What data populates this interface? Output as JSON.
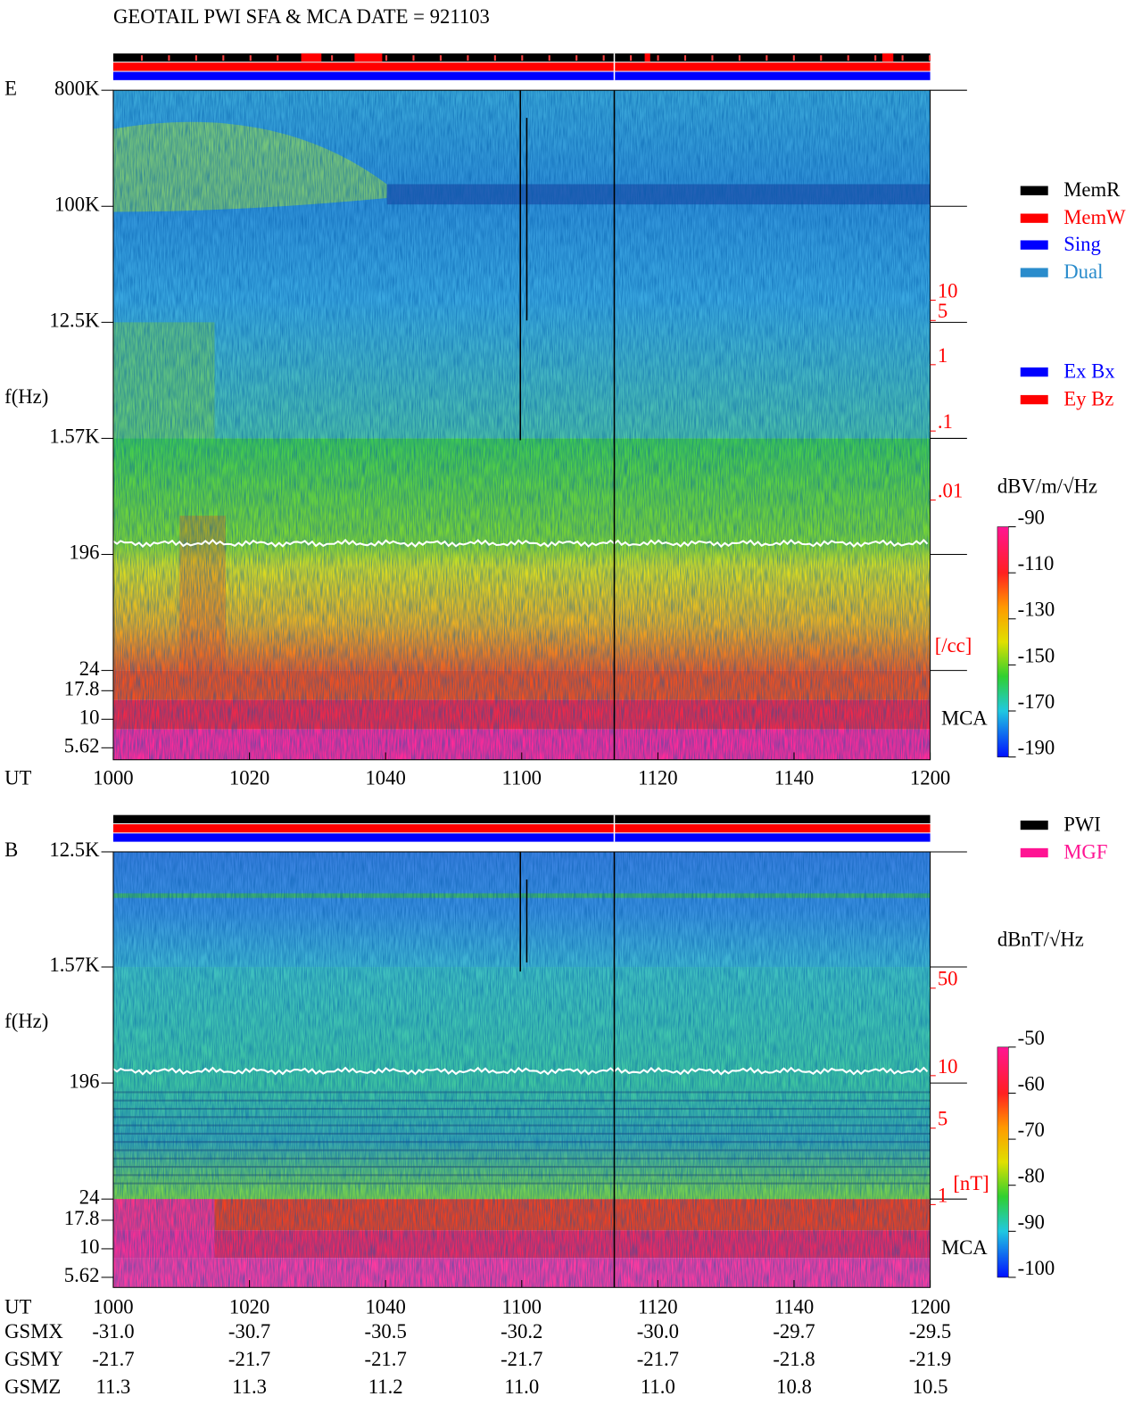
{
  "header": {
    "title": "GEOTAIL  PWI SFA & MCA   DATE = 921103"
  },
  "panels": [
    {
      "label": "E",
      "y_axis_label": "f(Hz)",
      "x_axis_label": "UT",
      "mca_label": "MCA",
      "freq_ticks": [
        "800K",
        "100K",
        "12.5K",
        "1.57K",
        "196",
        "24",
        "17.8",
        "10",
        "5.62"
      ],
      "time_ticks": [
        "1000",
        "1020",
        "1040",
        "1100",
        "1120",
        "1140",
        "1200"
      ],
      "side_scale": {
        "ticks": [
          "10",
          "5",
          "1",
          ".1",
          ".01"
        ],
        "unit": "[/cc]"
      },
      "legend": [
        {
          "name": "MemR",
          "color": "#000000"
        },
        {
          "name": "MemW",
          "color": "#ff0000"
        },
        {
          "name": "Sing",
          "color": "#0000ff"
        },
        {
          "name": "Dual",
          "color": "#2a8ccc"
        }
      ],
      "legend2": [
        {
          "name": "Ex Bx",
          "color": "#0000ff"
        },
        {
          "name": "Ey Bz",
          "color": "#ff0000"
        }
      ],
      "colorbar": {
        "unit": "dBV/m/√Hz",
        "ticks": [
          -90,
          -110,
          -130,
          -150,
          -170,
          -190
        ]
      }
    },
    {
      "label": "B",
      "y_axis_label": "f(Hz)",
      "x_axis_label": "UT",
      "mca_label": "MCA",
      "freq_ticks": [
        "12.5K",
        "1.57K",
        "196",
        "24",
        "17.8",
        "10",
        "5.62"
      ],
      "time_ticks": [
        "1000",
        "1020",
        "1040",
        "1100",
        "1120",
        "1140",
        "1200"
      ],
      "side_scale": {
        "ticks": [
          "50",
          "10",
          "5",
          "1"
        ],
        "unit": "[nT]"
      },
      "legend": [
        {
          "name": "PWI",
          "color": "#000000"
        },
        {
          "name": "MGF",
          "color": "#ff1493"
        }
      ],
      "colorbar": {
        "unit": "dBnT/√Hz",
        "ticks": [
          -50,
          -60,
          -70,
          -80,
          -90,
          -100
        ]
      }
    }
  ],
  "orbit": {
    "rows": [
      {
        "label": "GSMX",
        "values": [
          "-31.0",
          "-30.7",
          "-30.5",
          "-30.2",
          "-30.0",
          "-29.7",
          "-29.5"
        ]
      },
      {
        "label": "GSMY",
        "values": [
          "-21.7",
          "-21.7",
          "-21.7",
          "-21.7",
          "-21.7",
          "-21.8",
          "-21.9"
        ]
      },
      {
        "label": "GSMZ",
        "values": [
          "11.3",
          "11.3",
          "11.2",
          "11.0",
          "11.0",
          "10.8",
          "10.5"
        ]
      }
    ]
  }
}
